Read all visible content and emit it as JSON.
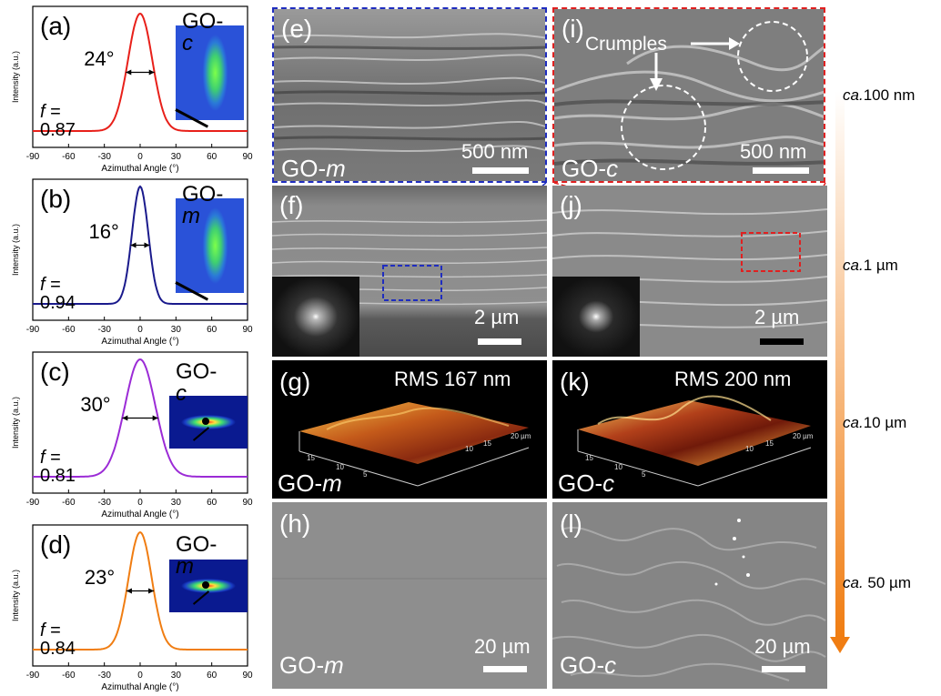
{
  "figure": {
    "plots": [
      {
        "letter": "(a)",
        "sample": "GO-",
        "sample_italic": "c",
        "fwhm": "24°",
        "f_label": "f",
        "f_value": " = 0.87",
        "color": "#e8201a"
      },
      {
        "letter": "(b)",
        "sample": "GO-",
        "sample_italic": "m",
        "fwhm": "16°",
        "f_label": "f",
        "f_value": " = 0.94",
        "color": "#1a1a8c"
      },
      {
        "letter": "(c)",
        "sample": "GO-",
        "sample_italic": "c",
        "fwhm": "30°",
        "f_label": "f",
        "f_value": " = 0.81",
        "color": "#9b2bd6"
      },
      {
        "letter": "(d)",
        "sample": "GO-",
        "sample_italic": "m",
        "fwhm": "23°",
        "f_label": "f",
        "f_value": " = 0.84",
        "color": "#f07d12"
      }
    ],
    "ylabel": "Intensity (a.u.)",
    "xlabel": "Azimuthal Angle (°)",
    "xticks": [
      "-90",
      "-60",
      "-30",
      "0",
      "30",
      "60",
      "90"
    ],
    "images": {
      "e": {
        "letter": "(e)",
        "tag": "GO-",
        "tag_italic": "m",
        "scale": "500 nm"
      },
      "i": {
        "letter": "(i)",
        "tag": "GO-",
        "tag_italic": "c",
        "scale": "500 nm",
        "annotation": "Crumples"
      },
      "f": {
        "letter": "(f)",
        "scale": "2 µm"
      },
      "j": {
        "letter": "(j)",
        "scale": "2 µm"
      },
      "g": {
        "letter": "(g)",
        "tag": "GO-",
        "tag_italic": "m",
        "rms": "RMS 167 nm"
      },
      "k": {
        "letter": "(k)",
        "tag": "GO-",
        "tag_italic": "c",
        "rms": "RMS 200 nm"
      },
      "h": {
        "letter": "(h)",
        "tag": "GO-",
        "tag_italic": "m",
        "scale": "20 µm"
      },
      "l": {
        "letter": "(l)",
        "tag": "GO-",
        "tag_italic": "c",
        "scale": "20 µm"
      }
    },
    "scale_bar": [
      {
        "prefix": "ca.",
        "value": "100 nm"
      },
      {
        "prefix": "ca.",
        "value": "1 µm"
      },
      {
        "prefix": "ca.",
        "value": "10 µm"
      },
      {
        "prefix": "ca.",
        "value": " 50 µm"
      }
    ]
  },
  "chart_data": [
    {
      "type": "line",
      "panel": "(a)",
      "x": [
        -90,
        -60,
        -45,
        -30,
        -20,
        -10,
        0,
        10,
        20,
        30,
        45,
        60,
        90
      ],
      "fwhm_deg": 24,
      "orientation_f": 0.87,
      "xlabel": "Azimuthal Angle (°)",
      "ylabel": "Intensity (a.u.)",
      "xlim": [
        -90,
        90
      ]
    },
    {
      "type": "line",
      "panel": "(b)",
      "fwhm_deg": 16,
      "orientation_f": 0.94,
      "xlabel": "Azimuthal Angle (°)",
      "ylabel": "Intensity (a.u.)",
      "xlim": [
        -90,
        90
      ]
    },
    {
      "type": "line",
      "panel": "(c)",
      "fwhm_deg": 30,
      "orientation_f": 0.81,
      "xlabel": "Azimuthal Angle (°)",
      "ylabel": "Intensity (a.u.)",
      "xlim": [
        -90,
        90
      ]
    },
    {
      "type": "line",
      "panel": "(d)",
      "fwhm_deg": 23,
      "orientation_f": 0.84,
      "xlabel": "Azimuthal Angle (°)",
      "ylabel": "Intensity (a.u.)",
      "xlim": [
        -90,
        90
      ]
    }
  ]
}
